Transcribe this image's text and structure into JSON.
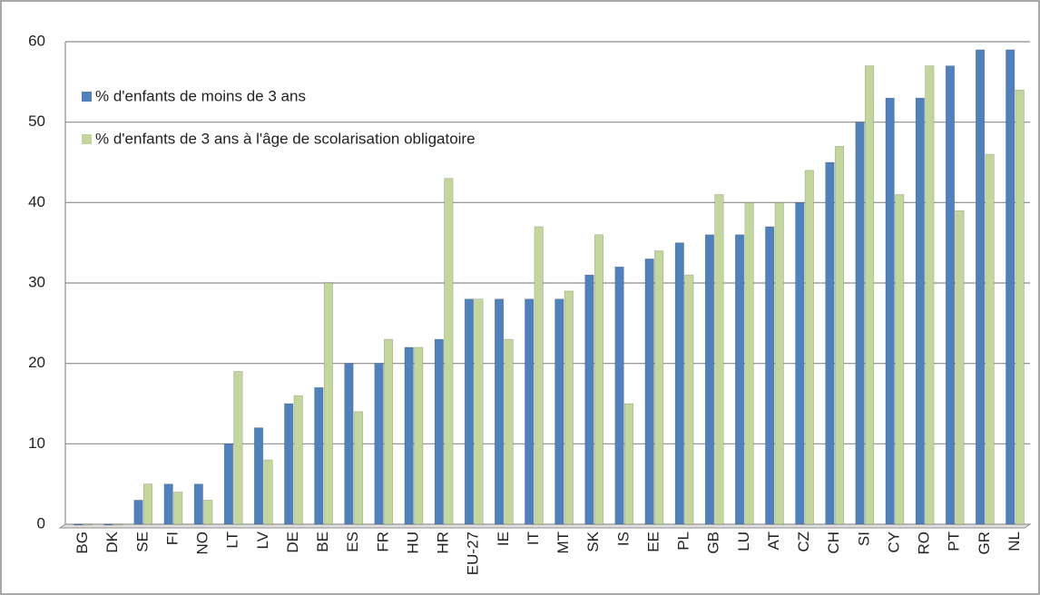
{
  "chart_data": {
    "type": "bar",
    "categories": [
      "BG",
      "DK",
      "SE",
      "FI",
      "NO",
      "LT",
      "LV",
      "DE",
      "BE",
      "ES",
      "FR",
      "HU",
      "HR",
      "EU-27",
      "IE",
      "IT",
      "MT",
      "SK",
      "IS",
      "EE",
      "PL",
      "GB",
      "LU",
      "AT",
      "CZ",
      "CH",
      "SI",
      "CY",
      "RO",
      "PT",
      "GR",
      "NL"
    ],
    "series": [
      {
        "name": "% d'enfants de moins de 3 ans",
        "color": "#4f81bd",
        "values": [
          0,
          0,
          3,
          5,
          5,
          10,
          12,
          15,
          17,
          20,
          20,
          22,
          23,
          28,
          28,
          28,
          28,
          31,
          32,
          33,
          35,
          36,
          36,
          37,
          40,
          45,
          50,
          53,
          53,
          57,
          59,
          59
        ]
      },
      {
        "name": "% d'enfants de 3 ans à l'âge de scolarisation obligatoire",
        "color": "#c3d69b",
        "values": [
          0,
          0,
          5,
          4,
          3,
          19,
          8,
          16,
          30,
          14,
          23,
          22,
          43,
          28,
          23,
          37,
          29,
          36,
          15,
          34,
          31,
          41,
          40,
          40,
          44,
          47,
          57,
          41,
          57,
          39,
          46,
          54
        ]
      }
    ],
    "ylim": [
      0,
      60
    ],
    "yticks": [
      0,
      10,
      20,
      30,
      40,
      50,
      60
    ],
    "grid": true,
    "legend": "upper-left"
  }
}
